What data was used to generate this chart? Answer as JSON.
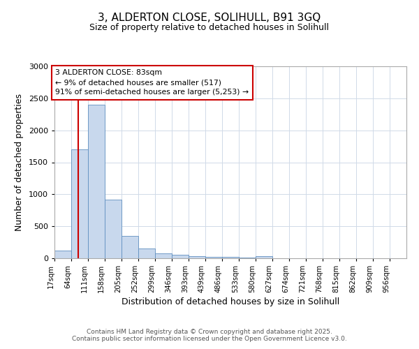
{
  "title_line1": "3, ALDERTON CLOSE, SOLIHULL, B91 3GQ",
  "title_line2": "Size of property relative to detached houses in Solihull",
  "xlabel": "Distribution of detached houses by size in Solihull",
  "ylabel": "Number of detached properties",
  "bin_labels": [
    "17sqm",
    "64sqm",
    "111sqm",
    "158sqm",
    "205sqm",
    "252sqm",
    "299sqm",
    "346sqm",
    "393sqm",
    "439sqm",
    "486sqm",
    "533sqm",
    "580sqm",
    "627sqm",
    "674sqm",
    "721sqm",
    "768sqm",
    "815sqm",
    "862sqm",
    "909sqm",
    "956sqm"
  ],
  "bin_edges": [
    17,
    64,
    111,
    158,
    205,
    252,
    299,
    346,
    393,
    439,
    486,
    533,
    580,
    627,
    674,
    721,
    768,
    815,
    862,
    909,
    956
  ],
  "bin_width": 47,
  "bar_heights": [
    120,
    1700,
    2400,
    920,
    350,
    150,
    80,
    55,
    35,
    25,
    20,
    12,
    30,
    3,
    3,
    2,
    2,
    2,
    2,
    2,
    2
  ],
  "bar_color": "#c8d8ed",
  "bar_edge_color": "#6090c0",
  "red_line_x": 83,
  "red_line_color": "#cc0000",
  "annotation_text": "3 ALDERTON CLOSE: 83sqm\n← 9% of detached houses are smaller (517)\n91% of semi-detached houses are larger (5,253) →",
  "annotation_box_color": "#ffffff",
  "annotation_box_edge": "#cc0000",
  "ylim": [
    0,
    3000
  ],
  "yticks": [
    0,
    500,
    1000,
    1500,
    2000,
    2500,
    3000
  ],
  "footer_text": "Contains HM Land Registry data © Crown copyright and database right 2025.\nContains public sector information licensed under the Open Government Licence v3.0.",
  "bg_color": "#ffffff",
  "plot_bg_color": "#ffffff",
  "grid_color": "#d0dae8"
}
